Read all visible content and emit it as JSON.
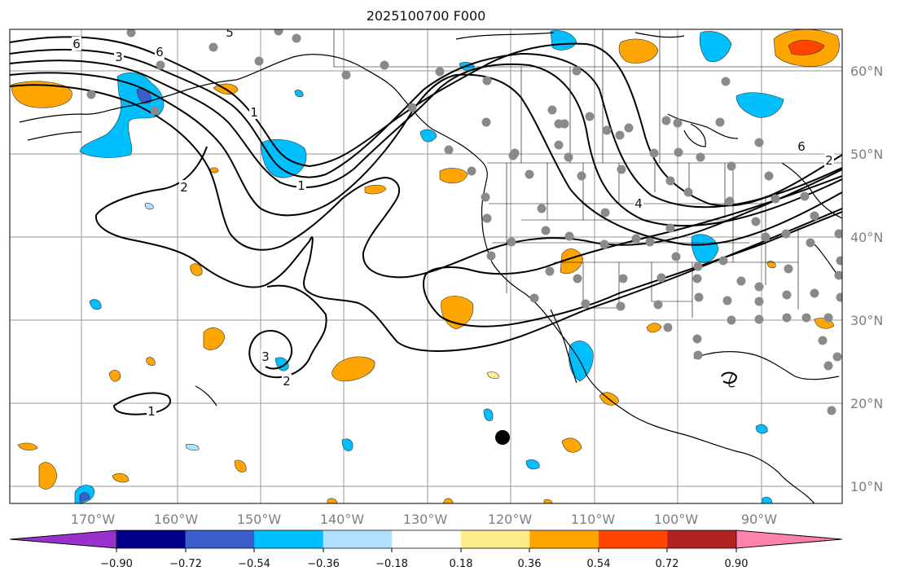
{
  "title": "2025100700 F000",
  "lon_labels": [
    "170°W",
    "160°W",
    "150°W",
    "140°W",
    "130°W",
    "120°W",
    "110°W",
    "100°W",
    "90°W"
  ],
  "lat_labels": [
    "60°N",
    "50°N",
    "40°N",
    "30°N",
    "20°N",
    "10°N"
  ],
  "colorbar": {
    "ticks": [
      "−0.90",
      "−0.72",
      "−0.54",
      "−0.36",
      "−0.18",
      "0.18",
      "0.36",
      "0.54",
      "0.72",
      "0.90"
    ],
    "colors": [
      "#9932cc",
      "#00008b",
      "#3a5fcd",
      "#00bfff",
      "#b0e2ff",
      "#ffffff",
      "#ffec8b",
      "#ffa500",
      "#ff4500",
      "#b22222",
      "#ff82ab"
    ]
  },
  "contour_labels": [
    "6",
    "5",
    "3",
    "6",
    "1",
    "2",
    "1",
    "4",
    "3",
    "2",
    "6",
    "2",
    "1"
  ],
  "fill_colors": {
    "orange": "#ffa500",
    "yellow": "#ffec8b",
    "blue": "#00bfff",
    "lightblue": "#b0e2ff",
    "royal": "#3a5fcd",
    "red": "#ff4500"
  }
}
